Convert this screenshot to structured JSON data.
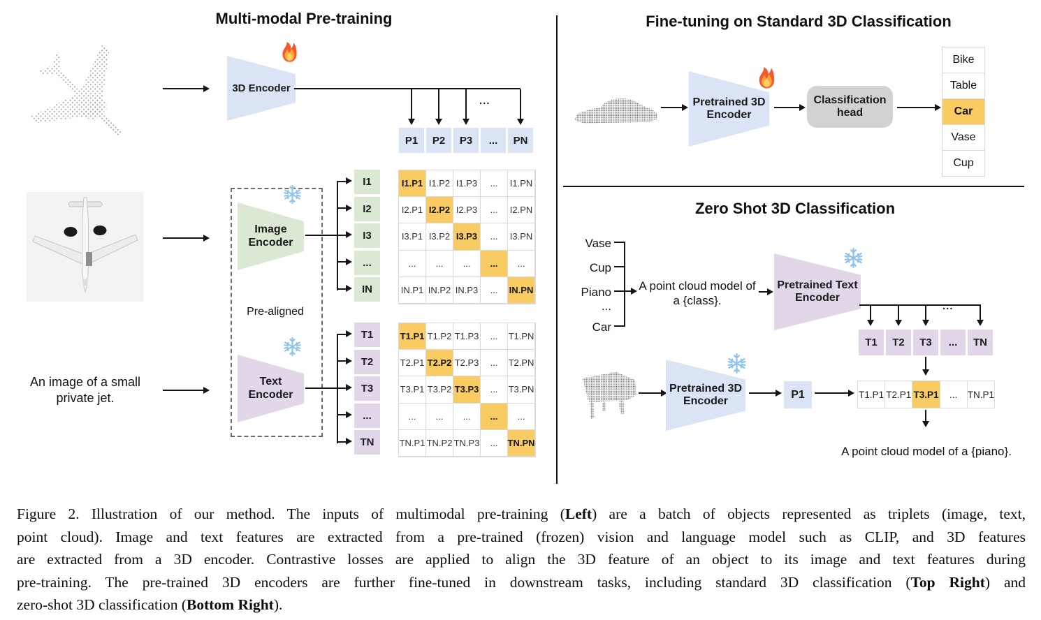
{
  "colors": {
    "blue": "#dae4f5",
    "green": "#dbe9d4",
    "purple": "#e2d6e9",
    "amber": "#f9cc63",
    "gray_box": "#d2d2d2"
  },
  "left": {
    "title": "Multi-modal Pre-training",
    "encoder_3d_label": "3D Encoder",
    "image_encoder": {
      "line1": "Image",
      "line2": "Encoder"
    },
    "text_encoder": {
      "line1": "Text",
      "line2": "Encoder"
    },
    "pre_aligned_label": "Pre-aligned",
    "text_input": {
      "line1": "An image of a small",
      "line2": "private jet."
    },
    "dots": "...",
    "p_row": [
      "P1",
      "P2",
      "P3",
      "...",
      "PN"
    ],
    "i_col": [
      "I1",
      "I2",
      "I3",
      "...",
      "IN"
    ],
    "t_col": [
      "T1",
      "T2",
      "T3",
      "...",
      "TN"
    ],
    "i_matrix": [
      [
        "I1.P1",
        "I1.P2",
        "I1.P3",
        "...",
        "I1.PN"
      ],
      [
        "I2.P1",
        "I2.P2",
        "I2.P3",
        "...",
        "I2.PN"
      ],
      [
        "I3.P1",
        "I3.P2",
        "I3.P3",
        "...",
        "I3.PN"
      ],
      [
        "...",
        "...",
        "...",
        "...",
        "..."
      ],
      [
        "IN.P1",
        "IN.P2",
        "IN.P3",
        "...",
        "IN.PN"
      ]
    ],
    "t_matrix": [
      [
        "T1.P1",
        "T1.P2",
        "T1.P3",
        "...",
        "T1.PN"
      ],
      [
        "T2.P1",
        "T2.P2",
        "T2.P3",
        "...",
        "T2.PN"
      ],
      [
        "T3.P1",
        "T3.P2",
        "T3.P3",
        "...",
        "T3.PN"
      ],
      [
        "...",
        "...",
        "...",
        "...",
        "..."
      ],
      [
        "TN.P1",
        "TN.P2",
        "TN.P3",
        "...",
        "TN.PN"
      ]
    ]
  },
  "top_right": {
    "title": "Fine-tuning on Standard 3D Classification",
    "encoder": {
      "line1": "Pretrained 3D",
      "line2": "Encoder"
    },
    "head": {
      "line1": "Classification",
      "line2": "head"
    },
    "class_list": {
      "items": [
        "Bike",
        "Table",
        "Car",
        "Vase",
        "Cup"
      ],
      "highlight": "Car"
    }
  },
  "bottom_right": {
    "title": "Zero Shot 3D Classification",
    "prompt_classes": [
      "Vase",
      "Cup",
      "Piano",
      "...",
      "Car"
    ],
    "prompt": {
      "line1": "A point cloud model of",
      "line2": "a {class}."
    },
    "text_encoder": {
      "line1": "Pretrained Text",
      "line2": "Encoder"
    },
    "encoder_3d": {
      "line1": "Pretrained 3D",
      "line2": "Encoder"
    },
    "p1_label": "P1",
    "dots": "...",
    "t_row": [
      "T1",
      "T2",
      "T3",
      "...",
      "TN"
    ],
    "result_row": {
      "items": [
        "T1.P1",
        "T2.P1",
        "T3.P1",
        "...",
        "TN.P1"
      ],
      "highlight_index": 2
    },
    "result_caption": "A point cloud model of a {piano}."
  },
  "caption": {
    "lines": [
      [
        {
          "t": "Figure 2. Illustration of our method.  The inputs of multimodal pre-training ("
        },
        {
          "t": "Left",
          "b": true
        },
        {
          "t": ") are a batch of objects represented as triplets (image, text,"
        }
      ],
      [
        {
          "t": "point cloud).  Image and text features are extracted from a pre-trained (frozen) vision and language model such as CLIP, and 3D features"
        }
      ],
      [
        {
          "t": "are extracted from a 3D encoder.  Contrastive losses are applied to align the 3D feature of an object to its image and text features during"
        }
      ],
      [
        {
          "t": "pre-training.  The pre-trained 3D encoders are further fine-tuned in downstream tasks, including standard 3D classification ("
        },
        {
          "t": "Top Right",
          "b": true
        },
        {
          "t": ") and"
        }
      ],
      [
        {
          "t": "zero-shot 3D classification ("
        },
        {
          "t": "Bottom Right",
          "b": true
        },
        {
          "t": ")."
        }
      ]
    ]
  }
}
